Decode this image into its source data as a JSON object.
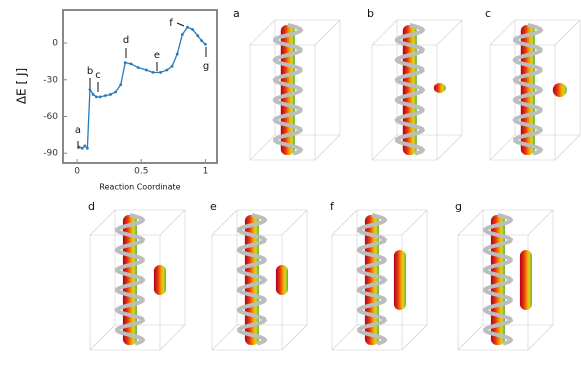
{
  "chart_data": {
    "type": "line",
    "ylabel": "ΔE [ J]",
    "xlabel": "Reaction Coordinate",
    "x": [
      0.016,
      0.04,
      0.06,
      0.08,
      0.1,
      0.125,
      0.15,
      0.18,
      0.22,
      0.26,
      0.3,
      0.34,
      0.375,
      0.42,
      0.475,
      0.54,
      0.59,
      0.65,
      0.7,
      0.74,
      0.78,
      0.82,
      0.86,
      0.9,
      0.94,
      0.97,
      1.0
    ],
    "series": [
      {
        "color": "#2a7ab8",
        "values": [
          -85,
          -86,
          -84,
          -86,
          -38,
          -42,
          -44,
          -44,
          -43,
          -42,
          -40,
          -34,
          -16,
          -17,
          -20,
          -22,
          -24,
          -24,
          -22,
          -19,
          -9,
          7,
          13,
          11,
          6,
          2,
          -1
        ]
      }
    ],
    "xlim": [
      -0.11,
      1.09
    ],
    "ylim": [
      -98,
      27
    ],
    "xticks": [
      0,
      0.5,
      1
    ],
    "yticks": [
      -90,
      -60,
      -30,
      0
    ],
    "point_labels": [
      "a",
      "b",
      "c",
      "d",
      "e",
      "f",
      "g"
    ]
  },
  "panels": [
    "a",
    "b",
    "c",
    "d",
    "e",
    "f",
    "g"
  ]
}
